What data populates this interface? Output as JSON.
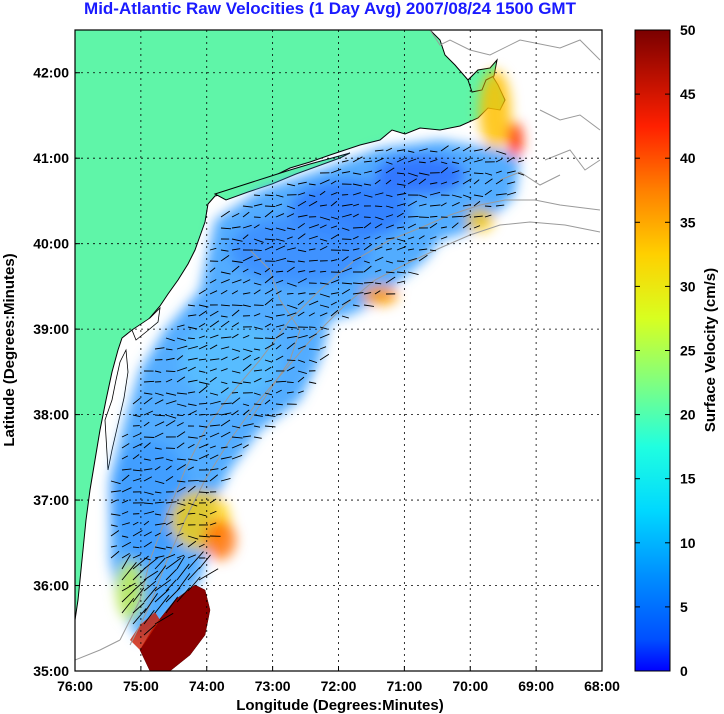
{
  "title": "Mid-Atlantic Raw Velocities (1 Day Avg) 2007/08/24 1500 GMT",
  "xlabel": "Longitude (Degrees:Minutes)",
  "ylabel": "Latitude (Degrees:Minutes)",
  "colorbar_label": "Surface Velocity (cm/s)",
  "x_ticks": [
    "76:00",
    "75:00",
    "74:00",
    "73:00",
    "72:00",
    "71:00",
    "70:00",
    "69:00",
    "68:00"
  ],
  "y_ticks": [
    "35:00",
    "36:00",
    "37:00",
    "38:00",
    "39:00",
    "40:00",
    "41:00",
    "42:00"
  ],
  "colorbar_ticks": [
    "0",
    "5",
    "10",
    "15",
    "20",
    "25",
    "30",
    "35",
    "40",
    "45",
    "50"
  ],
  "colors": {
    "land": "#5ff5a8",
    "title": "#1a1aff",
    "ocean": "#ffffff",
    "bathymetry_contour": "#9a9a9a",
    "vector_arrow": "#000000"
  },
  "chart_data": {
    "type": "heatmap",
    "title": "Mid-Atlantic Raw Velocities (1 Day Avg) 2007/08/24 1500 GMT",
    "xlabel": "Longitude (Degrees:Minutes)",
    "ylabel": "Latitude (Degrees:Minutes)",
    "xlim": [
      -76,
      -68
    ],
    "ylim": [
      35,
      42.5
    ],
    "colorbar_range": [
      0,
      50
    ],
    "colorbar_units": "cm/s",
    "colormap": "jet",
    "grid": true,
    "notes_visible": "Surface current vectors overlaid on velocity magnitude; highest speeds (~50 cm/s) near 35:30N 74:30W off Cape Hatteras; elevated speeds (~25-40 cm/s) near Cape Cod / Nantucket Shoals; most of the shelf 3-15 cm/s."
  }
}
